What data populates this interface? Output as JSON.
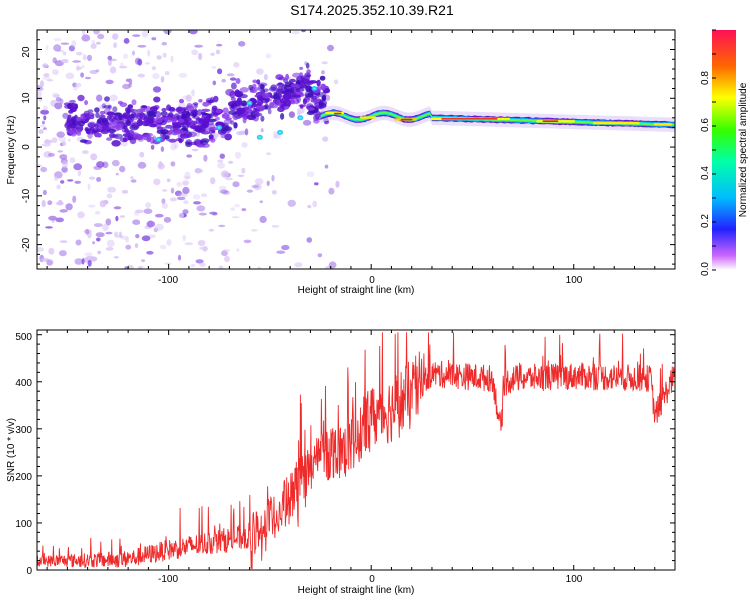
{
  "title": "S174.2025.352.10.39.R21",
  "colors": {
    "snr_line": "#ee2a2a",
    "spectrogram_low": "#6a1fd6",
    "spectrogram_mid": "#22e0e8",
    "spectrogram_high": "#ee1c1c"
  },
  "chart_data": [
    {
      "type": "heatmap",
      "name": "spectrogram",
      "xlabel": "Height of straight line (km)",
      "ylabel": "Frequency (Hz)",
      "xlim": [
        -165,
        150
      ],
      "ylim": [
        -25,
        24
      ],
      "x_ticks": [
        "-100",
        "0",
        "100"
      ],
      "y_ticks": [
        "-20",
        "-10",
        "0",
        "10",
        "20"
      ],
      "description_points": [
        {
          "x": -20,
          "y": 6.5,
          "amp": 0.55
        },
        {
          "x": 0,
          "y": 6,
          "amp": 0.5
        },
        {
          "x": 15,
          "y": 6.5,
          "amp": 0.9
        },
        {
          "x": 30,
          "y": 6,
          "amp": 0.75
        },
        {
          "x": 50,
          "y": 6,
          "amp": 0.95
        },
        {
          "x": 80,
          "y": 5,
          "amp": 0.7
        },
        {
          "x": 120,
          "y": 5,
          "amp": 0.6
        },
        {
          "x": 145,
          "y": 4.5,
          "amp": 0.55
        }
      ],
      "colorbar": {
        "label": "Normalized spectral amplitude",
        "range": [
          0,
          1
        ],
        "ticks": [
          "0.0",
          "0.2",
          "0.4",
          "0.6",
          "0.8"
        ]
      }
    },
    {
      "type": "line",
      "name": "snr",
      "xlabel": "Height of straight line (km)",
      "ylabel": "SNR (10 * v/v)",
      "xlim": [
        -165,
        150
      ],
      "ylim": [
        0,
        510
      ],
      "x_ticks": [
        "-100",
        "0",
        "100"
      ],
      "y_ticks": [
        "0",
        "100",
        "200",
        "300",
        "400",
        "500"
      ],
      "trend": {
        "x": [
          -165,
          -140,
          -120,
          -100,
          -80,
          -60,
          -50,
          -40,
          -30,
          -20,
          -10,
          0,
          10,
          20,
          30,
          60,
          64,
          66,
          70,
          100,
          138,
          140,
          150
        ],
        "y": [
          20,
          22,
          25,
          45,
          60,
          75,
          110,
          160,
          230,
          260,
          270,
          330,
          350,
          380,
          420,
          410,
          300,
          400,
          410,
          415,
          410,
          330,
          420
        ]
      }
    }
  ]
}
